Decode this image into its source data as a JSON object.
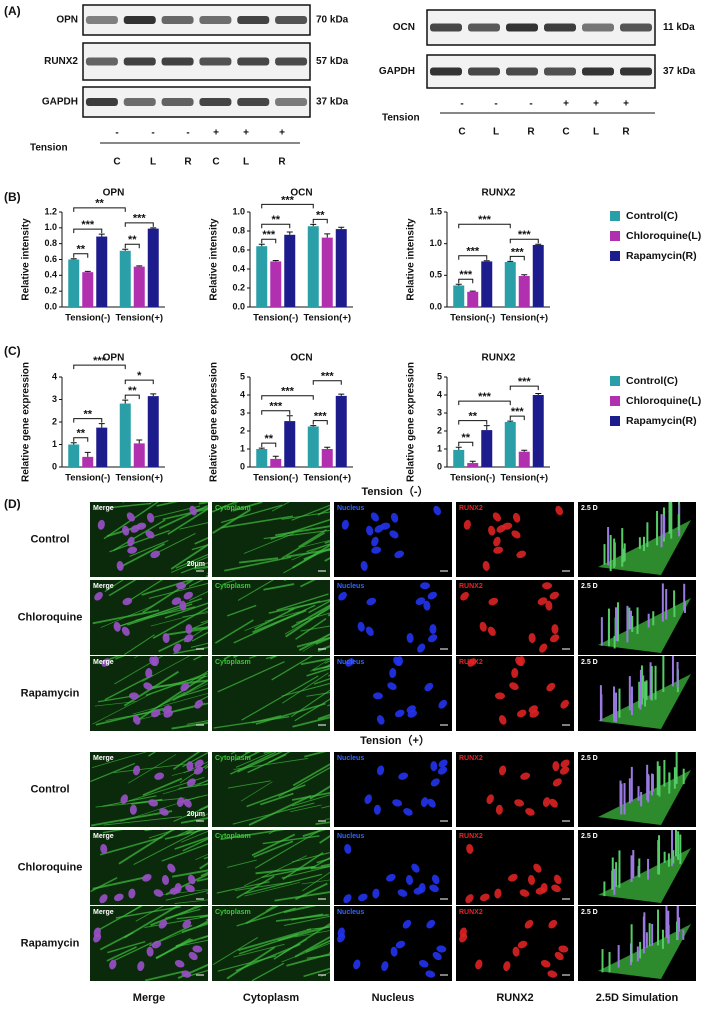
{
  "panel_a": {
    "label": "(A)",
    "left_blot": [
      {
        "protein": "OPN",
        "size": "70 kDa"
      },
      {
        "protein": "RUNX2",
        "size": "57 kDa"
      },
      {
        "protein": "GAPDH",
        "size": "37 kDa"
      }
    ],
    "right_blot": [
      {
        "protein": "OCN",
        "size": "11 kDa"
      },
      {
        "protein": "GAPDH",
        "size": "37 kDa"
      }
    ],
    "tension_label": "Tension",
    "tension": [
      "-",
      "-",
      "-",
      "+",
      "+",
      "+"
    ],
    "groups": [
      "C",
      "L",
      "R",
      "C",
      "L",
      "R"
    ]
  },
  "panel_b_label": "(B)",
  "panel_c_label": "(C)",
  "chart_data": [
    {
      "type": "bar",
      "title": "OPN",
      "y_label": "Relative intensity",
      "categories": [
        "Tension(-)",
        "Tension(+)"
      ],
      "series": [
        {
          "color": "#2a9fa8",
          "values": [
            0.6,
            0.71
          ],
          "errors": [
            0.01,
            0.02
          ]
        },
        {
          "color": "#b030b0",
          "values": [
            0.44,
            0.51
          ],
          "errors": [
            0.01,
            0.01
          ]
        },
        {
          "color": "#1c1c8c",
          "values": [
            0.89,
            0.99
          ],
          "errors": [
            0.03,
            0.01
          ]
        }
      ],
      "ylim": [
        0,
        1.2
      ],
      "yticks": [
        {
          "value": 0,
          "label": "0.0"
        },
        0.2,
        0.4,
        0.6,
        0.8,
        {
          "value": 1,
          "label": "1.0"
        },
        1.2
      ],
      "significance": [
        {
          "label": "**",
          "bars": [
            [
              0,
              0
            ],
            [
              0,
              1
            ]
          ]
        },
        {
          "label": "***",
          "bars": [
            [
              0,
              0
            ],
            [
              0,
              2
            ]
          ]
        },
        {
          "label": "**",
          "bars": [
            [
              1,
              0
            ],
            [
              1,
              1
            ]
          ]
        },
        {
          "label": "***",
          "bars": [
            [
              1,
              0
            ],
            [
              1,
              2
            ]
          ]
        },
        {
          "label": "**",
          "bars": [
            [
              0,
              0
            ],
            [
              1,
              0
            ]
          ]
        }
      ]
    },
    {
      "type": "bar",
      "title": "OCN",
      "y_label": "Relative intensity",
      "categories": [
        "Tension(-)",
        "Tension(+)"
      ],
      "series": [
        {
          "color": "#2a9fa8",
          "values": [
            0.64,
            0.85
          ],
          "errors": [
            0.02,
            0.02
          ]
        },
        {
          "color": "#b030b0",
          "values": [
            0.48,
            0.73
          ],
          "errors": [
            0.01,
            0.04
          ]
        },
        {
          "color": "#1c1c8c",
          "values": [
            0.76,
            0.82
          ],
          "errors": [
            0.03,
            0.02
          ]
        }
      ],
      "ylim": [
        0,
        1
      ],
      "yticks": [
        {
          "value": 0,
          "label": "0.0"
        },
        0.2,
        0.4,
        0.6,
        0.8,
        {
          "value": 1,
          "label": "1.0"
        }
      ],
      "significance": [
        {
          "label": "***",
          "bars": [
            [
              0,
              0
            ],
            [
              0,
              1
            ]
          ]
        },
        {
          "label": "**",
          "bars": [
            [
              0,
              0
            ],
            [
              0,
              2
            ]
          ]
        },
        {
          "label": "**",
          "bars": [
            [
              1,
              0
            ],
            [
              1,
              1
            ]
          ]
        },
        {
          "label": "***",
          "bars": [
            [
              0,
              0
            ],
            [
              1,
              0
            ]
          ]
        }
      ]
    },
    {
      "type": "bar",
      "title": "RUNX2",
      "y_label": "Relative intensity",
      "categories": [
        "Tension(-)",
        "Tension(+)"
      ],
      "series": [
        {
          "name": "Control(C)",
          "color": "#2a9fa8",
          "values": [
            0.34,
            0.71
          ],
          "errors": [
            0.02,
            0.01
          ]
        },
        {
          "name": "Chloroquine(L)",
          "color": "#b030b0",
          "values": [
            0.24,
            0.49
          ],
          "errors": [
            0.01,
            0.02
          ]
        },
        {
          "name": "Rapamycin(R)",
          "color": "#1c1c8c",
          "values": [
            0.72,
            0.98
          ],
          "errors": [
            0.01,
            0.01
          ]
        }
      ],
      "ylim": [
        0,
        1.5
      ],
      "yticks": [
        {
          "value": 0,
          "label": "0.0"
        },
        0.5,
        {
          "value": 1,
          "label": "1.0"
        },
        1.5
      ],
      "legend": "right",
      "significance": [
        {
          "label": "***",
          "bars": [
            [
              0,
              0
            ],
            [
              0,
              1
            ]
          ]
        },
        {
          "label": "***",
          "bars": [
            [
              0,
              0
            ],
            [
              0,
              2
            ]
          ]
        },
        {
          "label": "***",
          "bars": [
            [
              1,
              0
            ],
            [
              1,
              1
            ]
          ]
        },
        {
          "label": "***",
          "bars": [
            [
              1,
              0
            ],
            [
              1,
              2
            ]
          ]
        },
        {
          "label": "***",
          "bars": [
            [
              0,
              0
            ],
            [
              1,
              0
            ]
          ]
        }
      ]
    },
    {
      "type": "bar",
      "title": "OPN",
      "y_label": "Relative gene expression",
      "categories": [
        "Tension(-)",
        "Tension(+)"
      ],
      "series": [
        {
          "color": "#2a9fa8",
          "values": [
            1,
            2.82
          ],
          "errors": [
            0.08,
            0.15
          ]
        },
        {
          "color": "#b030b0",
          "values": [
            0.45,
            1.05
          ],
          "errors": [
            0.2,
            0.15
          ]
        },
        {
          "color": "#1c1c8c",
          "values": [
            1.75,
            3.15
          ],
          "errors": [
            0.18,
            0.1
          ]
        }
      ],
      "ylim": [
        0,
        4
      ],
      "yticks": [
        0,
        1,
        2,
        3,
        4
      ],
      "significance": [
        {
          "label": "**",
          "bars": [
            [
              0,
              0
            ],
            [
              0,
              1
            ]
          ]
        },
        {
          "label": "**",
          "bars": [
            [
              0,
              0
            ],
            [
              0,
              2
            ]
          ]
        },
        {
          "label": "**",
          "bars": [
            [
              1,
              0
            ],
            [
              1,
              1
            ]
          ]
        },
        {
          "label": "*",
          "bars": [
            [
              1,
              0
            ],
            [
              1,
              2
            ]
          ]
        },
        {
          "label": "***",
          "bars": [
            [
              0,
              0
            ],
            [
              1,
              0
            ]
          ]
        }
      ]
    },
    {
      "type": "bar",
      "title": "OCN",
      "y_label": "Relative gene expression",
      "categories": [
        "Tension(-)",
        "Tension(+)"
      ],
      "series": [
        {
          "color": "#2a9fa8",
          "values": [
            1,
            2.25
          ],
          "errors": [
            0.05,
            0.05
          ]
        },
        {
          "color": "#b030b0",
          "values": [
            0.45,
            1
          ],
          "errors": [
            0.15,
            0.1
          ]
        },
        {
          "color": "#1c1c8c",
          "values": [
            2.55,
            3.95
          ],
          "errors": [
            0.3,
            0.1
          ]
        }
      ],
      "ylim": [
        0,
        5
      ],
      "yticks": [
        0,
        1,
        2,
        3,
        4,
        5
      ],
      "significance": [
        {
          "label": "**",
          "bars": [
            [
              0,
              0
            ],
            [
              0,
              1
            ]
          ]
        },
        {
          "label": "***",
          "bars": [
            [
              0,
              0
            ],
            [
              0,
              2
            ]
          ]
        },
        {
          "label": "***",
          "bars": [
            [
              1,
              0
            ],
            [
              1,
              1
            ]
          ]
        },
        {
          "label": "***",
          "bars": [
            [
              0,
              0
            ],
            [
              1,
              0
            ]
          ]
        },
        {
          "label": "***",
          "bars": [
            [
              1,
              0
            ],
            [
              1,
              2
            ]
          ]
        }
      ]
    },
    {
      "type": "bar",
      "title": "RUNX2",
      "y_label": "Relative gene expression",
      "categories": [
        "Tension(-)",
        "Tension(+)"
      ],
      "series": [
        {
          "name": "Control(C)",
          "color": "#2a9fa8",
          "values": [
            0.95,
            2.5
          ],
          "errors": [
            0.15,
            0.05
          ]
        },
        {
          "name": "Chloroquine(L)",
          "color": "#b030b0",
          "values": [
            0.22,
            0.85
          ],
          "errors": [
            0.1,
            0.08
          ]
        },
        {
          "name": "Rapamycin(R)",
          "color": "#1c1c8c",
          "values": [
            2.05,
            4
          ],
          "errors": [
            0.25,
            0.08
          ]
        }
      ],
      "ylim": [
        0,
        5
      ],
      "yticks": [
        0,
        1,
        2,
        3,
        4,
        5
      ],
      "legend": "right",
      "significance": [
        {
          "label": "**",
          "bars": [
            [
              0,
              0
            ],
            [
              0,
              1
            ]
          ]
        },
        {
          "label": "**",
          "bars": [
            [
              0,
              0
            ],
            [
              0,
              2
            ]
          ]
        },
        {
          "label": "***",
          "bars": [
            [
              1,
              0
            ],
            [
              1,
              1
            ]
          ]
        },
        {
          "label": "***",
          "bars": [
            [
              0,
              0
            ],
            [
              1,
              0
            ]
          ]
        },
        {
          "label": "***",
          "bars": [
            [
              1,
              0
            ],
            [
              1,
              2
            ]
          ]
        }
      ]
    }
  ],
  "panel_d": {
    "label": "(D)",
    "groups": [
      {
        "title": "Tension（-）",
        "rows": [
          "Control",
          "Chloroquine",
          "Rapamycin"
        ]
      },
      {
        "title": "Tension（+）",
        "rows": [
          "Control",
          "Chloroquine",
          "Rapamycin"
        ]
      }
    ],
    "image_labels": [
      "Merge",
      "Cytoplasm",
      "Nucleus",
      "RUNX2",
      "2.5 D"
    ],
    "scale_bar": "20μm",
    "columns": [
      "Merge",
      "Cytoplasm",
      "Nucleus",
      "RUNX2",
      "2.5D Simulation"
    ]
  }
}
